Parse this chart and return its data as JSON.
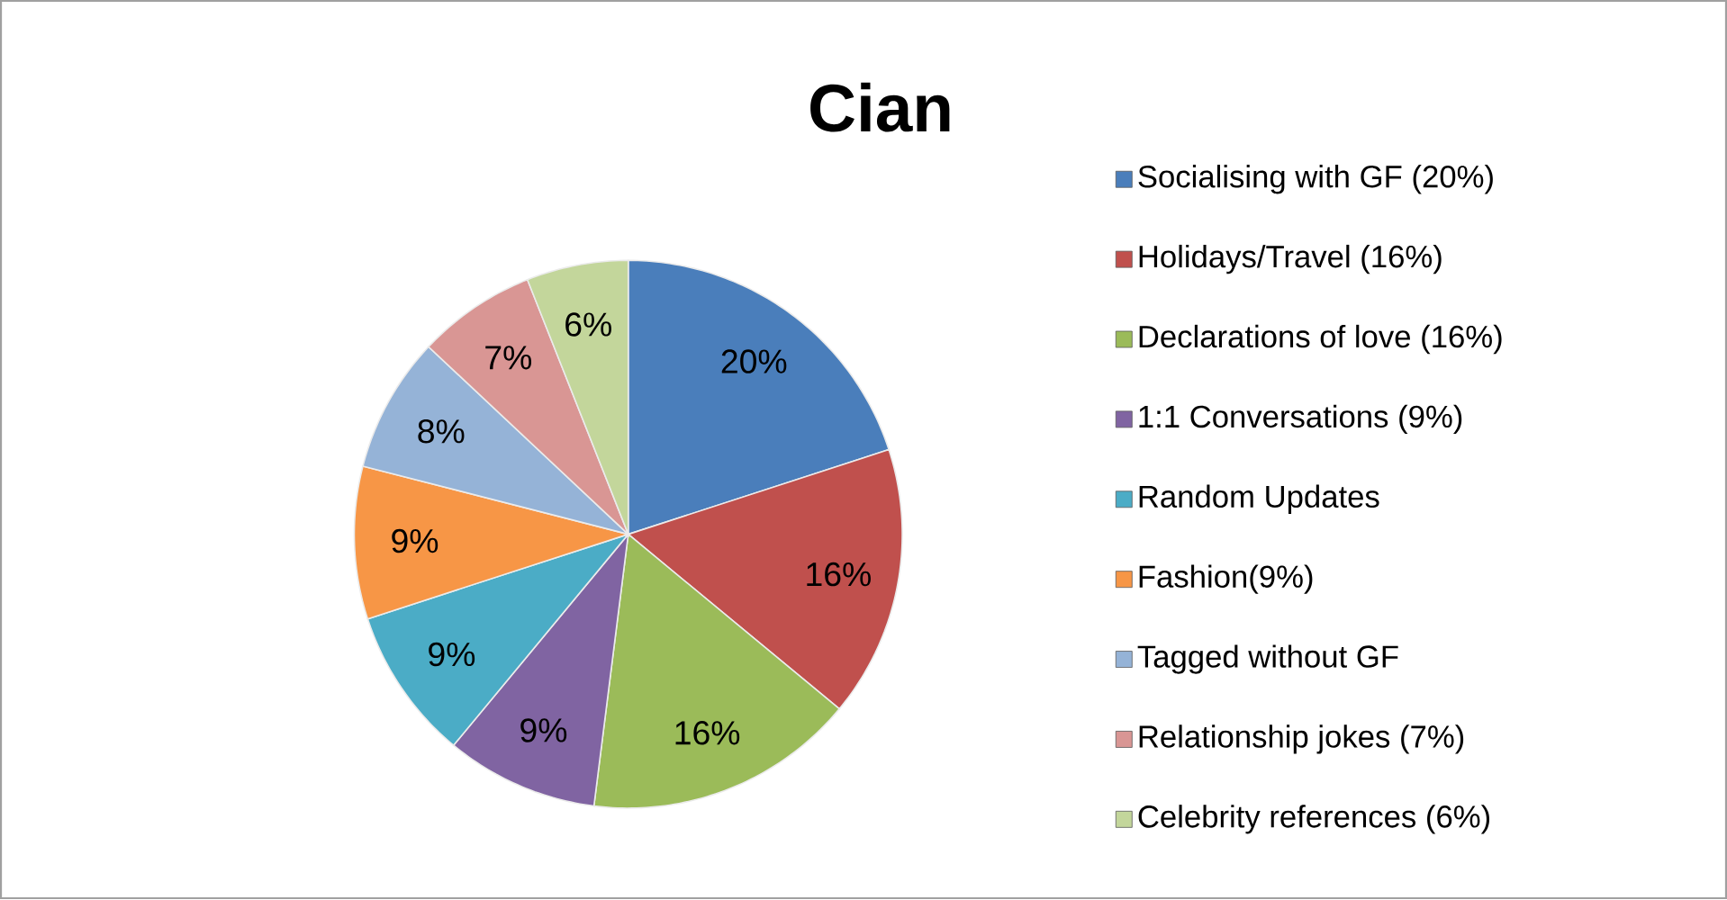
{
  "chart_data": {
    "type": "pie",
    "title": "Cian",
    "categories": [
      "Socialising with GF (20%)",
      "Holidays/Travel (16%)",
      "Declarations of love (16%)",
      "1:1 Conversations (9%)",
      "Random Updates",
      "Fashion(9%)",
      "Tagged without GF",
      "Relationship jokes (7%)",
      "Celebrity references (6%)"
    ],
    "values": [
      20,
      16,
      16,
      9,
      9,
      9,
      8,
      7,
      6
    ],
    "value_labels": [
      "20%",
      "16%",
      "16%",
      "9%",
      "9%",
      "9%",
      "8%",
      "7%",
      "6%"
    ],
    "colors": [
      "#4a7ebb",
      "#c0504d",
      "#9bbb59",
      "#8064a2",
      "#4bacc6",
      "#f79646",
      "#95b3d7",
      "#d99694",
      "#c3d69b"
    ],
    "legend": "right"
  }
}
